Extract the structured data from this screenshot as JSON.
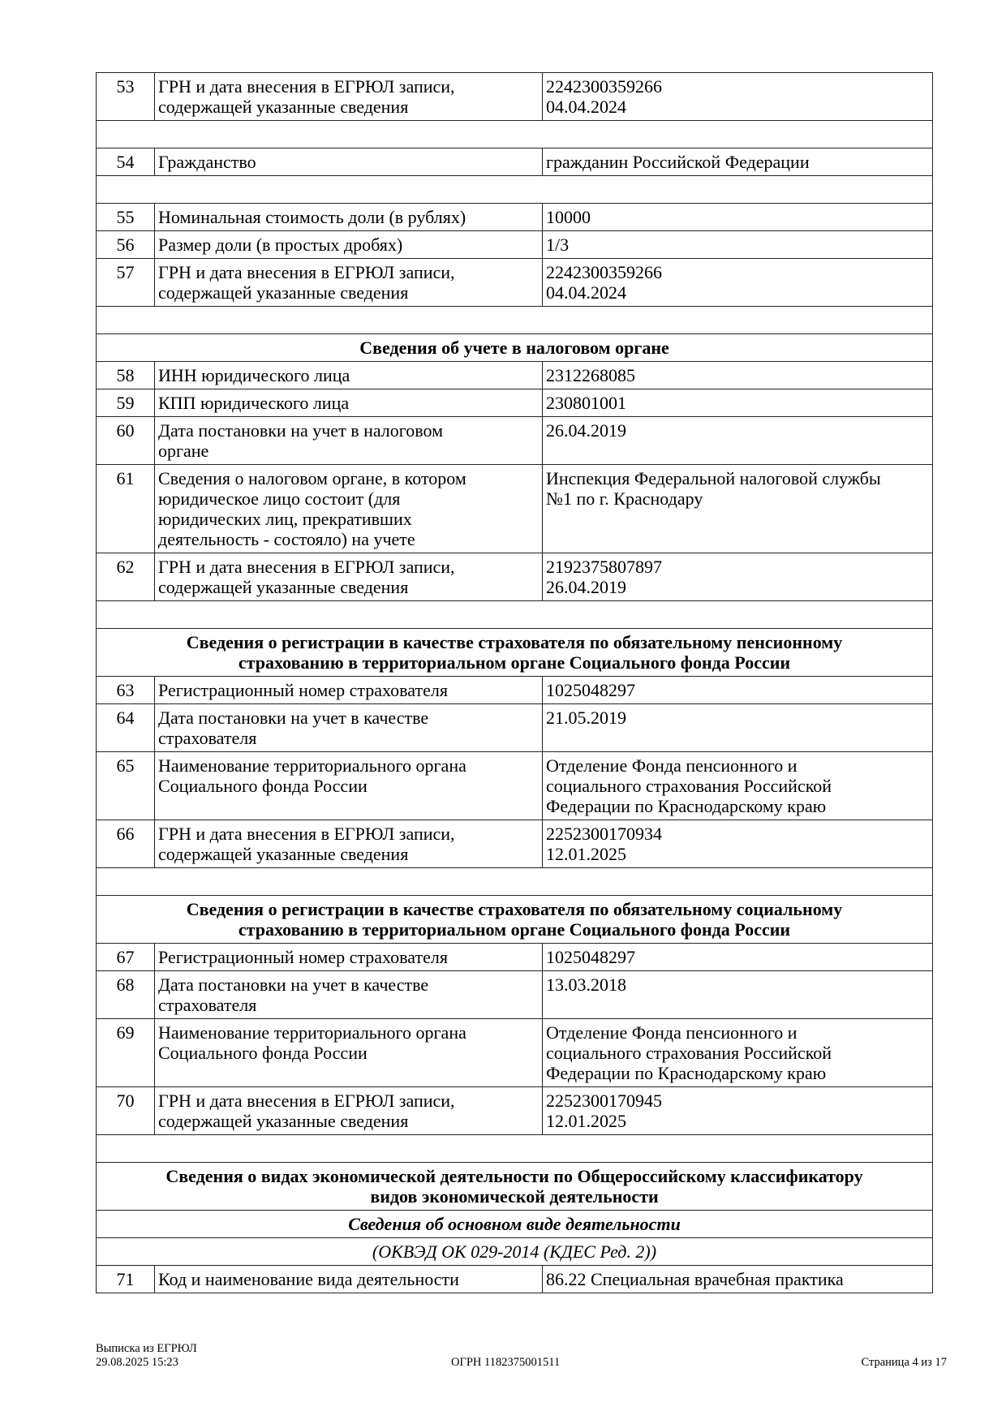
{
  "rows": [
    {
      "type": "row",
      "num": "53",
      "label": "ГРН и дата внесения в ЕГРЮЛ записи,\nсодержащей указанные сведения",
      "value": "2242300359266\n04.04.2024"
    },
    {
      "type": "spacer"
    },
    {
      "type": "row",
      "num": "54",
      "label": "Гражданство",
      "value": "гражданин Российской Федерации"
    },
    {
      "type": "spacer"
    },
    {
      "type": "row",
      "num": "55",
      "label": "Номинальная стоимость доли (в рублях)",
      "value": "10000"
    },
    {
      "type": "row",
      "num": "56",
      "label": "Размер доли (в простых дробях)",
      "value": "1/3"
    },
    {
      "type": "row",
      "num": "57",
      "label": "ГРН и дата внесения в ЕГРЮЛ записи,\nсодержащей указанные сведения",
      "value": "2242300359266\n04.04.2024"
    },
    {
      "type": "spacer"
    },
    {
      "type": "sec",
      "text": "Сведения об учете в налоговом органе"
    },
    {
      "type": "row",
      "num": "58",
      "label": "ИНН юридического лица",
      "value": "2312268085"
    },
    {
      "type": "row",
      "num": "59",
      "label": "КПП юридического лица",
      "value": "230801001"
    },
    {
      "type": "row",
      "num": "60",
      "label": "Дата постановки на учет в налоговом\nоргане",
      "value": "26.04.2019"
    },
    {
      "type": "row",
      "num": "61",
      "label": "Сведения о налоговом органе, в котором\nюридическое лицо состоит (для\nюридических лиц, прекративших\nдеятельность - состояло) на учете",
      "value": "Инспекция Федеральной налоговой службы\n№1 по г. Краснодару"
    },
    {
      "type": "row",
      "num": "62",
      "label": "ГРН и дата внесения в ЕГРЮЛ записи,\nсодержащей указанные сведения",
      "value": "2192375807897\n26.04.2019"
    },
    {
      "type": "spacer"
    },
    {
      "type": "sec",
      "text": "Сведения о регистрации в качестве страхователя по обязательному пенсионному\nстрахованию в территориальном органе Социального фонда России"
    },
    {
      "type": "row",
      "num": "63",
      "label": "Регистрационный номер страхователя",
      "value": "1025048297"
    },
    {
      "type": "row",
      "num": "64",
      "label": "Дата постановки на учет в качестве\nстрахователя",
      "value": "21.05.2019"
    },
    {
      "type": "row",
      "num": "65",
      "label": "Наименование территориального органа\nСоциального фонда России",
      "value": "Отделение Фонда пенсионного и\nсоциального страхования Российской\nФедерации по Краснодарскому краю"
    },
    {
      "type": "row",
      "num": "66",
      "label": "ГРН и дата внесения в ЕГРЮЛ записи,\nсодержащей указанные сведения",
      "value": "2252300170934\n12.01.2025"
    },
    {
      "type": "spacer"
    },
    {
      "type": "sec",
      "text": "Сведения о регистрации в качестве страхователя по обязательному социальному\nстрахованию в территориальном органе Социального фонда России"
    },
    {
      "type": "row",
      "num": "67",
      "label": "Регистрационный номер страхователя",
      "value": "1025048297"
    },
    {
      "type": "row",
      "num": "68",
      "label": "Дата постановки на учет в качестве\nстрахователя",
      "value": "13.03.2018"
    },
    {
      "type": "row",
      "num": "69",
      "label": "Наименование территориального органа\nСоциального фонда России",
      "value": "Отделение Фонда пенсионного и\nсоциального страхования Российской\nФедерации по Краснодарскому краю"
    },
    {
      "type": "row",
      "num": "70",
      "label": "ГРН и дата внесения в ЕГРЮЛ записи,\nсодержащей указанные сведения",
      "value": "2252300170945\n12.01.2025"
    },
    {
      "type": "spacer"
    },
    {
      "type": "sec",
      "text": "Сведения о видах экономической деятельности по Общероссийскому классификатору\nвидов экономической деятельности"
    },
    {
      "type": "sub",
      "text": "Сведения об основном виде деятельности"
    },
    {
      "type": "cls",
      "text": "(ОКВЭД ОК 029-2014 (КДЕС Ред. 2))"
    },
    {
      "type": "row",
      "num": "71",
      "label": "Код и наименование вида деятельности",
      "value": "86.22 Специальная врачебная практика"
    }
  ],
  "footer": {
    "doc_title": "Выписка из ЕГРЮЛ",
    "datetime": "29.08.2025 15:23",
    "ogrn": "ОГРН 1182375001511",
    "page": "Страница 4 из 17"
  }
}
